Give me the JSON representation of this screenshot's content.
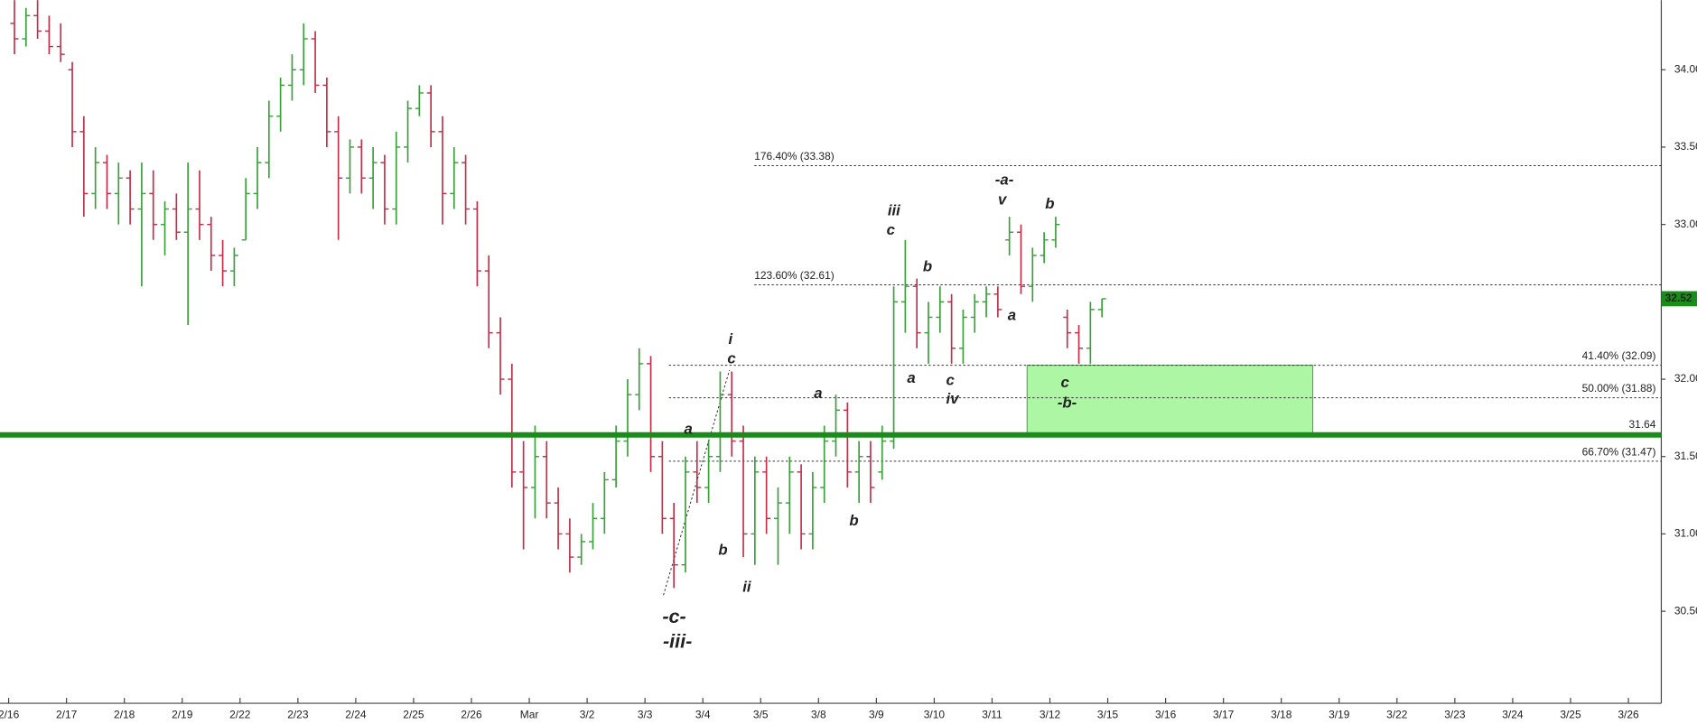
{
  "chart_data": {
    "type": "ohlc",
    "categories": [
      "2/16",
      "2/17",
      "2/18",
      "2/19",
      "2/22",
      "2/23",
      "2/24",
      "2/25",
      "2/26",
      "Mar",
      "3/2",
      "3/3",
      "3/4",
      "3/5",
      "3/8",
      "3/9",
      "3/10",
      "3/11",
      "3/12",
      "3/15",
      "3/16",
      "3/17",
      "3/18",
      "3/19",
      "3/22",
      "3/23",
      "3/24",
      "3/25",
      "3/26"
    ],
    "up_color": "#3aa03a",
    "down_color": "#c0304a",
    "bars": [
      [
        [
          34.3,
          34.45,
          34.1,
          34.2
        ],
        [
          34.2,
          34.4,
          34.15,
          34.35
        ],
        [
          34.35,
          34.45,
          34.2,
          34.25
        ],
        [
          34.25,
          34.35,
          34.1,
          34.15
        ],
        [
          34.15,
          34.3,
          34.05,
          34.1
        ]
      ],
      [
        [
          34.0,
          34.05,
          33.5,
          33.6
        ],
        [
          33.6,
          33.7,
          33.05,
          33.2
        ],
        [
          33.2,
          33.5,
          33.1,
          33.4
        ],
        [
          33.4,
          33.45,
          33.1,
          33.2
        ],
        [
          33.2,
          33.4,
          33.0,
          33.3
        ]
      ],
      [
        [
          33.3,
          33.35,
          33.0,
          33.1
        ],
        [
          33.1,
          33.4,
          32.6,
          33.2
        ],
        [
          33.2,
          33.35,
          32.9,
          33.0
        ],
        [
          33.0,
          33.15,
          32.8,
          33.1
        ],
        [
          33.1,
          33.2,
          32.9,
          32.95
        ]
      ],
      [
        [
          32.95,
          33.4,
          32.35,
          33.1
        ],
        [
          33.1,
          33.35,
          32.9,
          33.0
        ],
        [
          33.0,
          33.05,
          32.7,
          32.8
        ],
        [
          32.8,
          32.9,
          32.6,
          32.7
        ],
        [
          32.7,
          32.85,
          32.6,
          32.8
        ]
      ],
      [
        [
          32.9,
          33.3,
          32.9,
          33.2
        ],
        [
          33.2,
          33.5,
          33.1,
          33.4
        ],
        [
          33.4,
          33.8,
          33.3,
          33.7
        ],
        [
          33.7,
          33.95,
          33.6,
          33.9
        ],
        [
          33.9,
          34.1,
          33.8,
          34.0
        ]
      ],
      [
        [
          34.0,
          34.3,
          33.9,
          34.2
        ],
        [
          34.2,
          34.25,
          33.85,
          33.9
        ],
        [
          33.9,
          33.95,
          33.5,
          33.6
        ],
        [
          33.6,
          33.7,
          32.9,
          33.3
        ],
        [
          33.3,
          33.55,
          33.2,
          33.5
        ]
      ],
      [
        [
          33.5,
          33.55,
          33.2,
          33.3
        ],
        [
          33.3,
          33.5,
          33.1,
          33.4
        ],
        [
          33.4,
          33.45,
          33.0,
          33.1
        ],
        [
          33.1,
          33.6,
          33.0,
          33.5
        ],
        [
          33.5,
          33.8,
          33.4,
          33.75
        ]
      ],
      [
        [
          33.75,
          33.9,
          33.7,
          33.85
        ],
        [
          33.85,
          33.9,
          33.5,
          33.6
        ],
        [
          33.6,
          33.7,
          33.0,
          33.2
        ],
        [
          33.2,
          33.5,
          33.1,
          33.4
        ],
        [
          33.4,
          33.45,
          33.0,
          33.1
        ]
      ],
      [
        [
          33.1,
          33.15,
          32.6,
          32.7
        ],
        [
          32.7,
          32.8,
          32.2,
          32.3
        ],
        [
          32.3,
          32.4,
          31.9,
          32.0
        ],
        [
          32.0,
          32.1,
          31.3,
          31.4
        ],
        [
          31.4,
          31.6,
          30.9,
          31.3
        ]
      ],
      [
        [
          31.3,
          31.7,
          31.1,
          31.5
        ],
        [
          31.5,
          31.6,
          31.1,
          31.2
        ],
        [
          31.2,
          31.3,
          30.9,
          31.0
        ],
        [
          31.0,
          31.1,
          30.75,
          30.85
        ],
        [
          30.85,
          31.0,
          30.8,
          30.95
        ]
      ],
      [
        [
          30.95,
          31.2,
          30.9,
          31.1
        ],
        [
          31.1,
          31.4,
          31.0,
          31.35
        ],
        [
          31.35,
          31.7,
          31.3,
          31.6
        ],
        [
          31.6,
          32.0,
          31.5,
          31.9
        ],
        [
          31.9,
          32.2,
          31.8,
          32.1
        ]
      ],
      [
        [
          32.1,
          32.15,
          31.4,
          31.5
        ],
        [
          31.5,
          31.6,
          31.0,
          31.1
        ],
        [
          31.1,
          31.2,
          30.65,
          30.8
        ],
        [
          30.8,
          31.5,
          30.75,
          31.4
        ],
        [
          31.4,
          31.6,
          31.2,
          31.3
        ]
      ],
      [
        [
          31.3,
          31.6,
          31.2,
          31.5
        ],
        [
          31.5,
          32.05,
          31.4,
          31.9
        ],
        [
          31.9,
          32.05,
          31.5,
          31.6
        ],
        [
          31.6,
          31.7,
          30.85,
          31.0
        ],
        [
          31.0,
          31.5,
          30.8,
          31.4
        ]
      ],
      [
        [
          31.4,
          31.5,
          31.0,
          31.1
        ],
        [
          31.1,
          31.3,
          30.8,
          31.2
        ],
        [
          31.2,
          31.5,
          31.0,
          31.4
        ],
        [
          31.4,
          31.45,
          30.9,
          31.0
        ],
        [
          31.0,
          31.4,
          30.9,
          31.3
        ]
      ],
      [
        [
          31.3,
          31.7,
          31.2,
          31.6
        ],
        [
          31.6,
          31.9,
          31.5,
          31.8
        ],
        [
          31.8,
          31.85,
          31.3,
          31.4
        ],
        [
          31.4,
          31.6,
          31.2,
          31.5
        ],
        [
          31.5,
          31.6,
          31.2,
          31.3
        ]
      ],
      [
        [
          31.4,
          31.7,
          31.35,
          31.6
        ],
        [
          31.6,
          32.6,
          31.55,
          32.5
        ],
        [
          32.5,
          32.9,
          32.3,
          32.6
        ],
        [
          32.6,
          32.65,
          32.2,
          32.3
        ],
        [
          32.3,
          32.5,
          32.1,
          32.4
        ]
      ],
      [
        [
          32.4,
          32.6,
          32.3,
          32.5
        ],
        [
          32.5,
          32.55,
          32.1,
          32.2
        ],
        [
          32.2,
          32.45,
          32.1,
          32.4
        ],
        [
          32.4,
          32.55,
          32.3,
          32.5
        ],
        [
          32.5,
          32.6,
          32.4,
          32.55
        ]
      ],
      [
        [
          32.55,
          32.6,
          32.4,
          32.45
        ],
        [
          32.9,
          33.05,
          32.8,
          32.95
        ],
        [
          32.95,
          33.0,
          32.55,
          32.6
        ],
        [
          32.6,
          32.85,
          32.5,
          32.8
        ],
        [
          32.8,
          32.95,
          32.75,
          32.9
        ]
      ],
      [
        [
          32.9,
          33.05,
          32.85,
          33.0
        ],
        [
          32.4,
          32.45,
          32.2,
          32.3
        ],
        [
          32.3,
          32.35,
          32.1,
          32.2
        ],
        [
          32.2,
          32.5,
          32.1,
          32.45
        ],
        [
          32.45,
          32.52,
          32.4,
          32.52
        ]
      ],
      [],
      [],
      [],
      [],
      [],
      [],
      [],
      [],
      [],
      []
    ],
    "ylim": [
      29.94,
      34.45
    ],
    "yticks": [
      {
        "value": 30.5,
        "label": "30.50"
      },
      {
        "value": 31,
        "label": "31.00"
      },
      {
        "value": 31.5,
        "label": "31.50"
      },
      {
        "value": 32,
        "label": "32.00"
      },
      {
        "value": 32.5,
        "label": "32.50"
      },
      {
        "value": 33,
        "label": "33.00"
      },
      {
        "value": 33.5,
        "label": "33.50"
      },
      {
        "value": 34,
        "label": "34.00"
      }
    ],
    "levels": [
      {
        "label": "176.40% (33.38)",
        "value": 33.38
      },
      {
        "label": "123.60% (32.61)",
        "value": 32.61
      },
      {
        "label": "41.40% (32.09)",
        "value": 32.09
      },
      {
        "label": "50.00% (31.88)",
        "value": 31.88
      },
      {
        "label": "66.70% (31.47)",
        "value": 31.47
      }
    ],
    "support": {
      "value": 31.64,
      "color": "#1a8c1a"
    },
    "zone": {
      "low": 31.64,
      "high": 32.09,
      "color": "#adf7a4"
    },
    "last_price": {
      "value": 32.52,
      "label": "32.52",
      "color": "#1a8c1a"
    },
    "annotations": [
      {
        "text": "-a-"
      },
      {
        "text": "v"
      },
      {
        "text": "b"
      },
      {
        "text": "iii"
      },
      {
        "text": "c"
      },
      {
        "text": "b"
      },
      {
        "text": "a"
      },
      {
        "text": "a"
      },
      {
        "text": "c"
      },
      {
        "text": "iv"
      },
      {
        "text": "c"
      },
      {
        "text": "-b-"
      },
      {
        "text": "i"
      },
      {
        "text": "c"
      },
      {
        "text": "a"
      },
      {
        "text": "a"
      },
      {
        "text": "b"
      },
      {
        "text": "ii"
      },
      {
        "text": "b"
      },
      {
        "text": "-c-",
        "color": "#1010d0"
      },
      {
        "text": "-iii-",
        "color": "#1010d0"
      }
    ]
  }
}
